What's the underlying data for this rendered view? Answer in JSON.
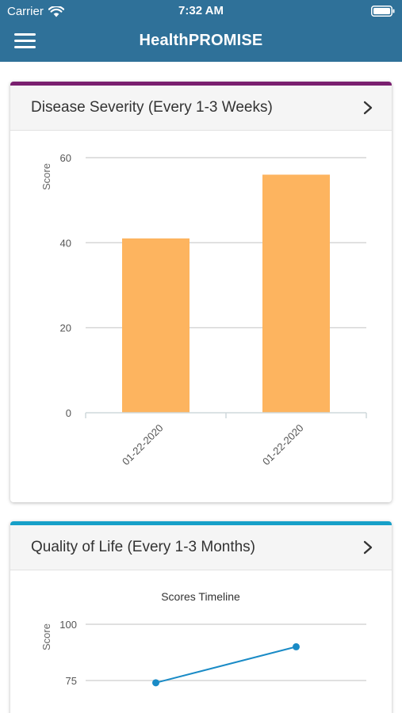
{
  "status_bar": {
    "carrier": "Carrier",
    "time": "7:32 AM",
    "wifi_icon": "wifi-icon",
    "battery_icon": "battery-icon"
  },
  "nav": {
    "title": "HealthPROMISE",
    "menu_icon": "hamburger-menu-icon"
  },
  "colors": {
    "header_bg": "#2f7199",
    "card1_accent": "#7a1f6f",
    "card2_accent": "#17a0c8",
    "bar_fill": "#fdb45f",
    "line_color": "#1a8bc6"
  },
  "cards": [
    {
      "title": "Disease Severity (Every 1-3 Weeks)",
      "chevron_icon": "chevron-right-icon"
    },
    {
      "title": "Quality of Life (Every 1-3 Months)",
      "chevron_icon": "chevron-right-icon"
    }
  ],
  "chart_data": [
    {
      "type": "bar",
      "categories": [
        "01-22-2020",
        "01-22-2020"
      ],
      "values": [
        41,
        56
      ],
      "title": "",
      "xlabel": "",
      "ylabel": "Score",
      "ylim": [
        0,
        60
      ],
      "yticks": [
        0,
        20,
        40,
        60
      ],
      "grid": true
    },
    {
      "type": "line",
      "title": "Scores Timeline",
      "ylabel": "Score",
      "yticks": [
        75,
        100
      ],
      "ylim": [
        75,
        100
      ],
      "values": [
        74,
        90
      ],
      "grid": true
    }
  ]
}
